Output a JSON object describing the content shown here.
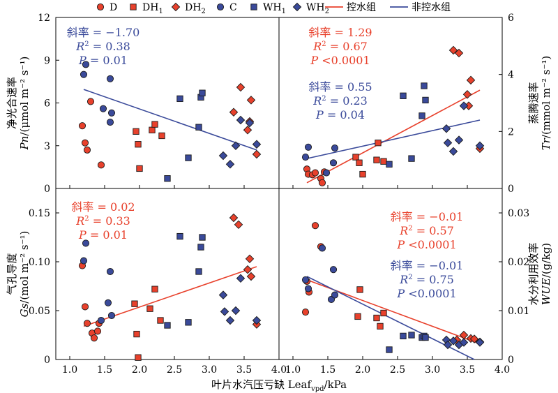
{
  "legend": {
    "items": [
      {
        "label": "D",
        "sub": "",
        "marker": "circle",
        "color": "#e8412c"
      },
      {
        "label": "DH",
        "sub": "1",
        "marker": "square",
        "color": "#e8412c"
      },
      {
        "label": "DH",
        "sub": "2",
        "marker": "diamond",
        "color": "#e8412c"
      },
      {
        "label": "C",
        "sub": "",
        "marker": "circle",
        "color": "#3a4a9a"
      },
      {
        "label": "WH",
        "sub": "1",
        "marker": "square",
        "color": "#3a4a9a"
      },
      {
        "label": "WH",
        "sub": "2",
        "marker": "diamond",
        "color": "#3a4a9a"
      },
      {
        "label": "控水组",
        "sub": "",
        "marker": "line",
        "color": "#e8412c"
      },
      {
        "label": "非控水组",
        "sub": "",
        "marker": "line",
        "color": "#3a4a9a"
      }
    ]
  },
  "xlabel": {
    "main": "叶片水汽压亏缺 Leaf",
    "sub": "vpd",
    "tail": "/kPa"
  },
  "colors": {
    "red": "#e8412c",
    "blue": "#3a4a9a"
  },
  "chart_data": [
    {
      "type": "scatter",
      "panel": "top-left",
      "ylabel_cn": "净光合速率",
      "ylabel_var": "Pn",
      "ylabel_unit": "/(μmol m⁻² s⁻¹)",
      "xlim": [
        0.8,
        4.0
      ],
      "ylim": [
        0,
        12
      ],
      "xticks": [
        "1.0",
        "1.5",
        "2.0",
        "2.5",
        "3.0",
        "3.5",
        "4.0"
      ],
      "yticks": [
        "0",
        "3",
        "6",
        "9",
        "12"
      ],
      "annotations": [
        {
          "color": "blue",
          "lines": [
            {
              "lead": "斜率",
              "text": "= −1.70"
            },
            {
              "lead": "R²",
              "text": "= 0.38"
            },
            {
              "lead": "P",
              "text": "= 0.01"
            }
          ]
        }
      ],
      "series": [
        {
          "group": "D",
          "marker": "circle",
          "color": "red",
          "points": [
            [
              1.18,
              4.4
            ],
            [
              1.22,
              3.2
            ],
            [
              1.25,
              2.7
            ],
            [
              1.3,
              6.1
            ],
            [
              1.45,
              1.65
            ]
          ]
        },
        {
          "group": "DH1",
          "marker": "square",
          "color": "red",
          "points": [
            [
              1.95,
              4.0
            ],
            [
              1.98,
              3.1
            ],
            [
              2.0,
              1.4
            ],
            [
              2.18,
              4.1
            ],
            [
              2.22,
              4.5
            ],
            [
              2.32,
              3.7
            ]
          ]
        },
        {
          "group": "DH2",
          "marker": "diamond",
          "color": "red",
          "points": [
            [
              3.35,
              5.35
            ],
            [
              3.45,
              7.1
            ],
            [
              3.55,
              4.1
            ],
            [
              3.58,
              4.7
            ],
            [
              3.6,
              6.2
            ],
            [
              3.68,
              2.4
            ]
          ]
        },
        {
          "group": "C",
          "marker": "circle",
          "color": "blue",
          "points": [
            [
              1.2,
              8.0
            ],
            [
              1.23,
              8.7
            ],
            [
              1.48,
              5.6
            ],
            [
              1.58,
              7.7
            ],
            [
              1.58,
              4.65
            ],
            [
              1.6,
              5.3
            ]
          ]
        },
        {
          "group": "WH1",
          "marker": "square",
          "color": "blue",
          "points": [
            [
              2.4,
              0.7
            ],
            [
              2.58,
              6.3
            ],
            [
              2.7,
              2.15
            ],
            [
              2.85,
              4.3
            ],
            [
              2.88,
              6.4
            ],
            [
              2.9,
              6.7
            ]
          ]
        },
        {
          "group": "WH2",
          "marker": "diamond",
          "color": "blue",
          "points": [
            [
              3.2,
              2.3
            ],
            [
              3.3,
              1.7
            ],
            [
              3.38,
              3.0
            ],
            [
              3.45,
              4.8
            ],
            [
              3.58,
              4.6
            ],
            [
              3.68,
              3.1
            ]
          ]
        }
      ],
      "fits": [
        {
          "color": "blue",
          "from": [
            1.2,
            6.95
          ],
          "to": [
            3.68,
            2.7
          ]
        }
      ]
    },
    {
      "type": "scatter",
      "panel": "top-right",
      "ylabel_cn": "蒸腾速率",
      "ylabel_var": "Tr",
      "ylabel_unit": "/(mmol m⁻² s⁻¹)",
      "xlim": [
        0.8,
        4.0
      ],
      "ylim": [
        0,
        6
      ],
      "xticks": [
        "1.0",
        "1.5",
        "2.0",
        "2.5",
        "3.0",
        "3.5",
        "4.0"
      ],
      "yticks": [
        "0",
        "2",
        "4",
        "6"
      ],
      "annotations": [
        {
          "color": "red",
          "lines": [
            {
              "lead": "斜率",
              "text": "= 1.29"
            },
            {
              "lead": "R²",
              "text": "= 0.67"
            },
            {
              "lead": "P",
              "text": "<0.0001"
            }
          ]
        },
        {
          "color": "blue",
          "lines": [
            {
              "lead": "斜率",
              "text": "= 0.55"
            },
            {
              "lead": "R²",
              "text": "= 0.23"
            },
            {
              "lead": "P",
              "text": "= 0.04"
            }
          ]
        }
      ],
      "series": [
        {
          "group": "D",
          "marker": "circle",
          "color": "red",
          "points": [
            [
              1.2,
              0.68
            ],
            [
              1.22,
              0.5
            ],
            [
              1.28,
              0.48
            ],
            [
              1.32,
              0.55
            ],
            [
              1.4,
              0.35
            ],
            [
              1.42,
              0.2
            ],
            [
              1.45,
              0.58
            ]
          ]
        },
        {
          "group": "DH1",
          "marker": "square",
          "color": "red",
          "points": [
            [
              1.9,
              1.1
            ],
            [
              1.95,
              0.9
            ],
            [
              2.0,
              0.5
            ],
            [
              2.2,
              1.0
            ],
            [
              2.22,
              1.6
            ],
            [
              2.3,
              0.95
            ]
          ]
        },
        {
          "group": "DH2",
          "marker": "diamond",
          "color": "red",
          "points": [
            [
              3.3,
              4.85
            ],
            [
              3.38,
              4.75
            ],
            [
              3.5,
              3.3
            ],
            [
              3.52,
              2.9
            ],
            [
              3.55,
              3.8
            ],
            [
              3.68,
              1.4
            ]
          ]
        },
        {
          "group": "C",
          "marker": "circle",
          "color": "blue",
          "points": [
            [
              1.18,
              1.1
            ],
            [
              1.22,
              1.45
            ],
            [
              1.48,
              0.55
            ],
            [
              1.58,
              0.9
            ],
            [
              1.6,
              1.42
            ]
          ]
        },
        {
          "group": "WH1",
          "marker": "square",
          "color": "blue",
          "points": [
            [
              2.38,
              0.85
            ],
            [
              2.58,
              3.25
            ],
            [
              2.7,
              1.05
            ],
            [
              2.85,
              2.55
            ],
            [
              2.88,
              3.6
            ],
            [
              2.9,
              3.1
            ]
          ]
        },
        {
          "group": "WH2",
          "marker": "diamond",
          "color": "blue",
          "points": [
            [
              3.2,
              2.1
            ],
            [
              3.22,
              1.6
            ],
            [
              3.3,
              1.3
            ],
            [
              3.38,
              1.7
            ],
            [
              3.45,
              2.9
            ],
            [
              3.68,
              1.5
            ]
          ]
        }
      ],
      "fits": [
        {
          "color": "red",
          "from": [
            1.2,
            0.2
          ],
          "to": [
            3.68,
            3.45
          ]
        },
        {
          "color": "blue",
          "from": [
            1.2,
            1.05
          ],
          "to": [
            3.68,
            2.4
          ]
        }
      ]
    },
    {
      "type": "scatter",
      "panel": "bottom-left",
      "ylabel_cn": "气孔导度",
      "ylabel_var": "Gs",
      "ylabel_unit": "/(mol m⁻² s⁻¹)",
      "xlim": [
        0.8,
        4.0
      ],
      "ylim": [
        0,
        0.175
      ],
      "xticks": [
        "1.0",
        "1.5",
        "2.0",
        "2.5",
        "3.0",
        "3.5",
        "4.0"
      ],
      "yticks": [
        "0",
        "0.05",
        "0.10",
        "0.15"
      ],
      "annotations": [
        {
          "color": "red",
          "lines": [
            {
              "lead": "斜率",
              "text": "= 0.02"
            },
            {
              "lead": "R²",
              "text": "= 0.33"
            },
            {
              "lead": "P",
              "text": "= 0.01"
            }
          ]
        }
      ],
      "series": [
        {
          "group": "D",
          "marker": "circle",
          "color": "red",
          "points": [
            [
              1.18,
              0.096
            ],
            [
              1.22,
              0.054
            ],
            [
              1.25,
              0.037
            ],
            [
              1.32,
              0.027
            ],
            [
              1.35,
              0.022
            ],
            [
              1.4,
              0.029
            ],
            [
              1.42,
              0.037
            ]
          ]
        },
        {
          "group": "DH1",
          "marker": "square",
          "color": "red",
          "points": [
            [
              1.93,
              0.057
            ],
            [
              1.96,
              0.026
            ],
            [
              1.98,
              0.002
            ],
            [
              2.15,
              0.052
            ],
            [
              2.22,
              0.072
            ],
            [
              2.3,
              0.04
            ]
          ]
        },
        {
          "group": "DH2",
          "marker": "diamond",
          "color": "red",
          "points": [
            [
              3.35,
              0.145
            ],
            [
              3.42,
              0.138
            ],
            [
              3.55,
              0.092
            ],
            [
              3.58,
              0.103
            ],
            [
              3.6,
              0.085
            ],
            [
              3.68,
              0.036
            ]
          ]
        },
        {
          "group": "C",
          "marker": "circle",
          "color": "blue",
          "points": [
            [
              1.2,
              0.101
            ],
            [
              1.23,
              0.119
            ],
            [
              1.45,
              0.04
            ],
            [
              1.55,
              0.058
            ],
            [
              1.58,
              0.09
            ],
            [
              1.6,
              0.045
            ]
          ]
        },
        {
          "group": "WH1",
          "marker": "square",
          "color": "blue",
          "points": [
            [
              2.4,
              0.035
            ],
            [
              2.58,
              0.126
            ],
            [
              2.7,
              0.038
            ],
            [
              2.85,
              0.09
            ],
            [
              2.88,
              0.115
            ],
            [
              2.9,
              0.125
            ]
          ]
        },
        {
          "group": "WH2",
          "marker": "diamond",
          "color": "blue",
          "points": [
            [
              3.2,
              0.066
            ],
            [
              3.22,
              0.049
            ],
            [
              3.3,
              0.04
            ],
            [
              3.38,
              0.05
            ],
            [
              3.45,
              0.083
            ],
            [
              3.68,
              0.04
            ]
          ]
        }
      ],
      "fits": [
        {
          "color": "red",
          "from": [
            1.2,
            0.034
          ],
          "to": [
            3.68,
            0.095
          ]
        }
      ]
    },
    {
      "type": "scatter",
      "panel": "bottom-right",
      "ylabel_cn": "水分利用效率",
      "ylabel_var": "WUE",
      "ylabel_unit": "/(g/kg)",
      "xlim": [
        0.8,
        4.0
      ],
      "ylim": [
        0,
        0.035
      ],
      "xticks": [
        "1.0",
        "1.5",
        "2.0",
        "2.5",
        "3.0",
        "3.5",
        "4.0"
      ],
      "yticks": [
        "0",
        "0.01",
        "0.02",
        "0.03"
      ],
      "annotations": [
        {
          "color": "red",
          "lines": [
            {
              "lead": "斜率",
              "text": "= −0.01"
            },
            {
              "lead": "R²",
              "text": "= 0.57"
            },
            {
              "lead": "P",
              "text": "<0.0001"
            }
          ]
        },
        {
          "color": "blue",
          "lines": [
            {
              "lead": "斜率",
              "text": "= −0.01"
            },
            {
              "lead": "R²",
              "text": "= 0.75"
            },
            {
              "lead": "P",
              "text": "<0.0001"
            }
          ]
        }
      ],
      "series": [
        {
          "group": "D",
          "marker": "circle",
          "color": "red",
          "points": [
            [
              1.18,
              0.0097
            ],
            [
              1.2,
              0.016
            ],
            [
              1.23,
              0.0138
            ],
            [
              1.32,
              0.0274
            ],
            [
              1.4,
              0.0231
            ]
          ]
        },
        {
          "group": "DH1",
          "marker": "square",
          "color": "red",
          "points": [
            [
              1.93,
              0.0088
            ],
            [
              1.96,
              0.0143
            ],
            [
              2.2,
              0.0085
            ],
            [
              2.25,
              0.0068
            ],
            [
              2.3,
              0.0095
            ]
          ]
        },
        {
          "group": "DH2",
          "marker": "diamond",
          "color": "red",
          "points": [
            [
              3.35,
              0.004
            ],
            [
              3.45,
              0.005
            ],
            [
              3.55,
              0.0043
            ],
            [
              3.6,
              0.0042
            ],
            [
              3.68,
              0.0036
            ]
          ]
        },
        {
          "group": "C",
          "marker": "circle",
          "color": "blue",
          "points": [
            [
              1.18,
              0.0163
            ],
            [
              1.22,
              0.0145
            ],
            [
              1.42,
              0.0228
            ],
            [
              1.55,
              0.0123
            ],
            [
              1.58,
              0.0184
            ],
            [
              1.6,
              0.0132
            ]
          ]
        },
        {
          "group": "WH1",
          "marker": "square",
          "color": "blue",
          "points": [
            [
              2.38,
              0.002
            ],
            [
              2.58,
              0.0048
            ],
            [
              2.7,
              0.005
            ],
            [
              2.85,
              0.0045
            ],
            [
              2.88,
              0.0048
            ],
            [
              2.9,
              0.0045
            ]
          ]
        },
        {
          "group": "WH2",
          "marker": "diamond",
          "color": "blue",
          "points": [
            [
              3.2,
              0.004
            ],
            [
              3.22,
              0.003
            ],
            [
              3.3,
              0.0038
            ],
            [
              3.38,
              0.003
            ],
            [
              3.45,
              0.0035
            ],
            [
              3.68,
              0.0035
            ]
          ]
        }
      ],
      "fits": [
        {
          "color": "red",
          "from": [
            1.2,
            0.0163
          ],
          "to": [
            3.68,
            0.0032
          ]
        },
        {
          "color": "blue",
          "from": [
            1.2,
            0.017
          ],
          "to": [
            3.6,
            0.0
          ]
        }
      ]
    }
  ]
}
